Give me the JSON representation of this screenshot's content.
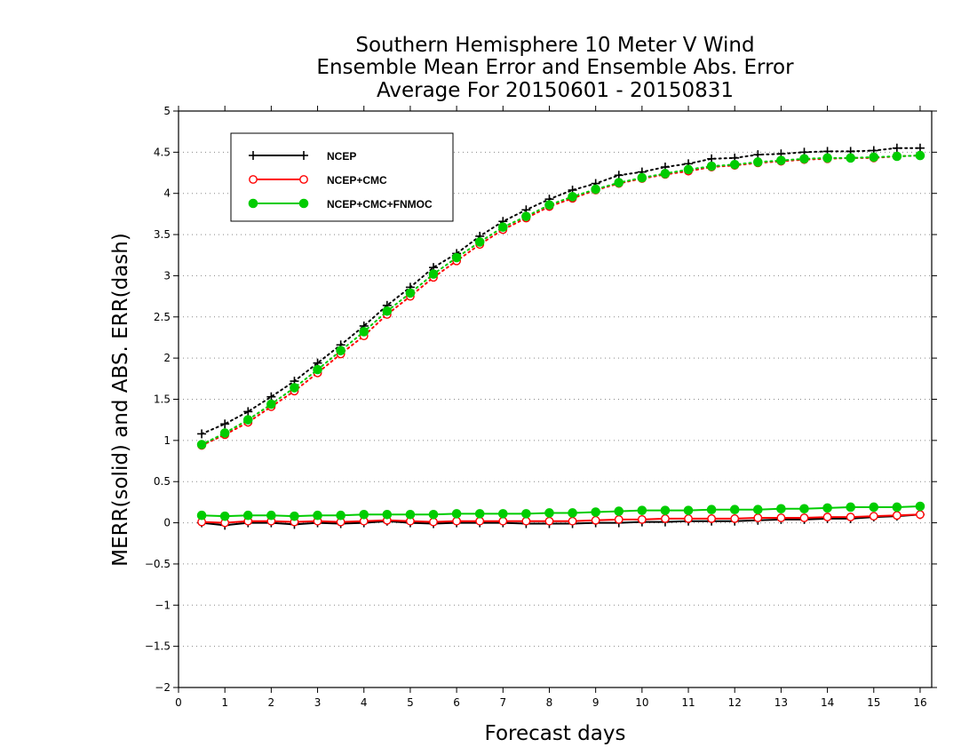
{
  "chart_data": {
    "type": "line",
    "title": [
      "Southern Hemisphere 10 Meter V Wind",
      "Ensemble Mean Error and Ensemble Abs. Error",
      "Average For 20150601 - 20150831"
    ],
    "xlabel": "Forecast days",
    "ylabel": "MERR(solid) and ABS. ERR(dash)",
    "xlim": [
      0,
      16.25
    ],
    "ylim": [
      -2,
      5
    ],
    "x_ticks": [
      0,
      1,
      2,
      3,
      4,
      5,
      6,
      7,
      8,
      9,
      10,
      11,
      12,
      13,
      14,
      15,
      16
    ],
    "x_tick_labels": [
      "0",
      "1",
      "2",
      "3",
      "4",
      "5",
      "6",
      "7",
      "8",
      "9",
      "10",
      "11",
      "12",
      "13",
      "14",
      "15",
      "16"
    ],
    "y_ticks": [
      -2,
      -1.5,
      -1,
      -0.5,
      0,
      0.5,
      1,
      1.5,
      2,
      2.5,
      3,
      3.5,
      4,
      4.5,
      5
    ],
    "y_tick_labels": [
      "−2",
      "−1.5",
      "−1",
      "−0.5",
      "0",
      "0.5",
      "1",
      "1.5",
      "2",
      "2.5",
      "3",
      "3.5",
      "4",
      "4.5",
      "5"
    ],
    "grid": "horizontal dotted",
    "legend_position": "top-left",
    "x": [
      0.5,
      1,
      1.5,
      2,
      2.5,
      3,
      3.5,
      4,
      4.5,
      5,
      5.5,
      6,
      6.5,
      7,
      7.5,
      8,
      8.5,
      9,
      9.5,
      10,
      10.5,
      11,
      11.5,
      12,
      12.5,
      13,
      13.5,
      14,
      14.5,
      15,
      15.5,
      16
    ],
    "series": [
      {
        "name": "NCEP",
        "color": "#000000",
        "marker": "plus",
        "merr": [
          0.0,
          -0.03,
          0.0,
          0.0,
          -0.02,
          0.0,
          -0.01,
          0.0,
          0.02,
          0.0,
          -0.01,
          0.0,
          0.0,
          0.0,
          -0.01,
          -0.01,
          -0.01,
          0.0,
          0.0,
          0.01,
          0.01,
          0.02,
          0.02,
          0.02,
          0.03,
          0.04,
          0.04,
          0.05,
          0.05,
          0.07,
          0.08,
          0.1
        ],
        "abs_err": [
          1.08,
          1.2,
          1.35,
          1.53,
          1.72,
          1.94,
          2.16,
          2.39,
          2.64,
          2.86,
          3.1,
          3.27,
          3.48,
          3.66,
          3.8,
          3.93,
          4.04,
          4.12,
          4.22,
          4.26,
          4.32,
          4.36,
          4.42,
          4.43,
          4.47,
          4.48,
          4.5,
          4.51,
          4.51,
          4.52,
          4.55,
          4.55
        ]
      },
      {
        "name": "NCEP+CMC",
        "color": "#ff0000",
        "marker": "open-circle",
        "merr": [
          0.01,
          0.0,
          0.02,
          0.02,
          0.01,
          0.02,
          0.01,
          0.02,
          0.03,
          0.02,
          0.01,
          0.02,
          0.02,
          0.02,
          0.02,
          0.02,
          0.02,
          0.03,
          0.04,
          0.04,
          0.05,
          0.05,
          0.05,
          0.05,
          0.06,
          0.06,
          0.06,
          0.07,
          0.07,
          0.08,
          0.09,
          0.1
        ],
        "abs_err": [
          0.94,
          1.07,
          1.22,
          1.41,
          1.6,
          1.82,
          2.05,
          2.27,
          2.53,
          2.75,
          2.98,
          3.18,
          3.38,
          3.56,
          3.7,
          3.84,
          3.94,
          4.04,
          4.12,
          4.18,
          4.23,
          4.27,
          4.32,
          4.34,
          4.37,
          4.39,
          4.41,
          4.42,
          4.43,
          4.43,
          4.45,
          4.46
        ]
      },
      {
        "name": "NCEP+CMC+FNMOC",
        "color": "#00cc00",
        "marker": "filled-circle",
        "merr": [
          0.09,
          0.08,
          0.09,
          0.09,
          0.08,
          0.09,
          0.09,
          0.1,
          0.1,
          0.1,
          0.1,
          0.11,
          0.11,
          0.11,
          0.11,
          0.12,
          0.12,
          0.13,
          0.14,
          0.15,
          0.15,
          0.15,
          0.16,
          0.16,
          0.16,
          0.17,
          0.17,
          0.18,
          0.19,
          0.19,
          0.19,
          0.2
        ],
        "abs_err": [
          0.95,
          1.09,
          1.25,
          1.44,
          1.64,
          1.86,
          2.09,
          2.32,
          2.57,
          2.79,
          3.02,
          3.22,
          3.41,
          3.59,
          3.72,
          3.86,
          3.96,
          4.05,
          4.13,
          4.19,
          4.24,
          4.29,
          4.33,
          4.35,
          4.38,
          4.4,
          4.42,
          4.43,
          4.43,
          4.44,
          4.45,
          4.46
        ]
      }
    ]
  }
}
